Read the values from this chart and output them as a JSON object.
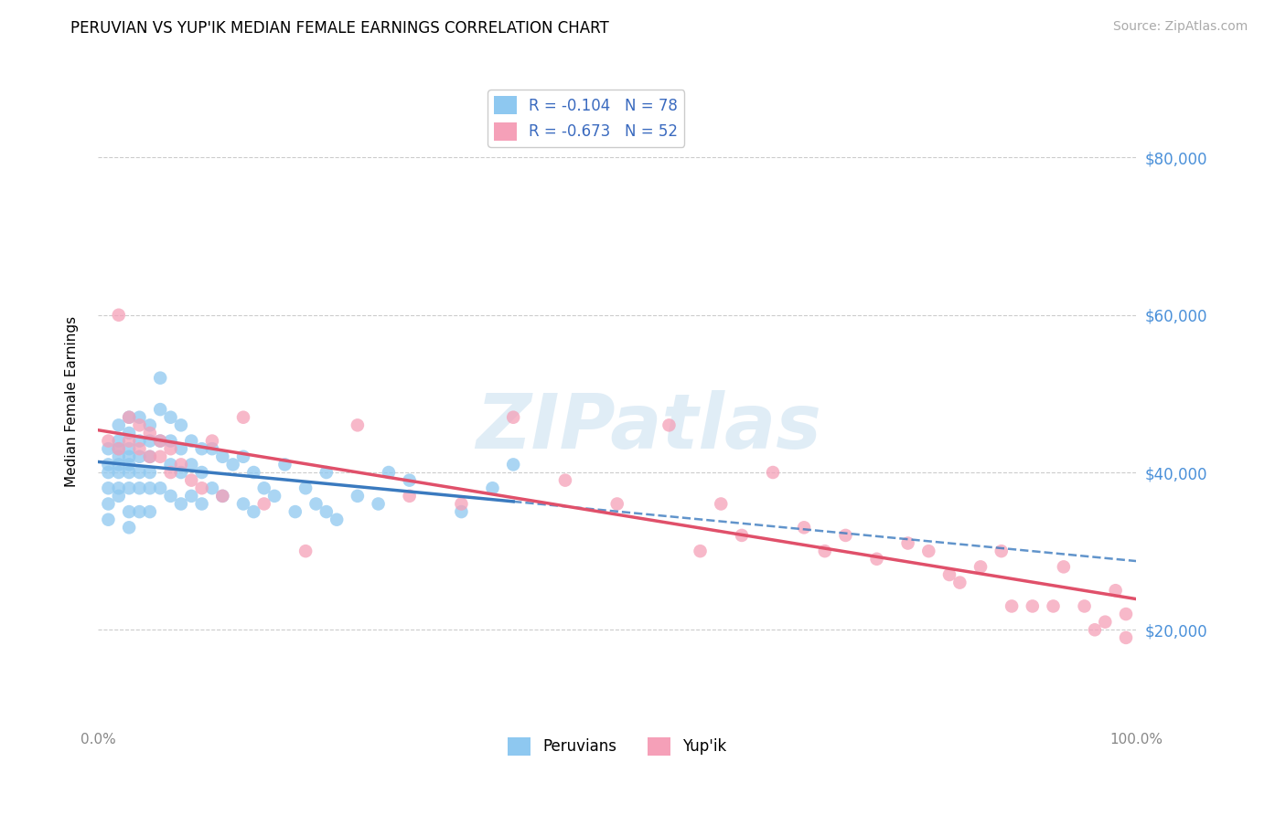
{
  "title": "PERUVIAN VS YUP'IK MEDIAN FEMALE EARNINGS CORRELATION CHART",
  "source": "Source: ZipAtlas.com",
  "ylabel": "Median Female Earnings",
  "xlim": [
    0.0,
    1.0
  ],
  "ylim": [
    8000,
    90000
  ],
  "yticks": [
    20000,
    40000,
    60000,
    80000
  ],
  "ytick_labels": [
    "$20,000",
    "$40,000",
    "$60,000",
    "$80,000"
  ],
  "peruvian_color": "#8ec8f0",
  "yupik_color": "#f5a0b8",
  "watermark": "ZIPatlas",
  "background_color": "#ffffff",
  "peruvian_x": [
    0.01,
    0.01,
    0.01,
    0.01,
    0.01,
    0.01,
    0.02,
    0.02,
    0.02,
    0.02,
    0.02,
    0.02,
    0.02,
    0.02,
    0.03,
    0.03,
    0.03,
    0.03,
    0.03,
    0.03,
    0.03,
    0.03,
    0.03,
    0.04,
    0.04,
    0.04,
    0.04,
    0.04,
    0.04,
    0.05,
    0.05,
    0.05,
    0.05,
    0.05,
    0.05,
    0.06,
    0.06,
    0.06,
    0.06,
    0.07,
    0.07,
    0.07,
    0.07,
    0.08,
    0.08,
    0.08,
    0.08,
    0.09,
    0.09,
    0.09,
    0.1,
    0.1,
    0.1,
    0.11,
    0.11,
    0.12,
    0.12,
    0.13,
    0.14,
    0.14,
    0.15,
    0.15,
    0.16,
    0.17,
    0.18,
    0.19,
    0.2,
    0.21,
    0.22,
    0.22,
    0.23,
    0.25,
    0.27,
    0.28,
    0.3,
    0.35,
    0.38,
    0.4
  ],
  "peruvian_y": [
    43000,
    41000,
    40000,
    38000,
    36000,
    34000,
    46000,
    44000,
    43000,
    42000,
    41000,
    40000,
    38000,
    37000,
    47000,
    45000,
    43000,
    42000,
    41000,
    40000,
    38000,
    35000,
    33000,
    47000,
    44000,
    42000,
    40000,
    38000,
    35000,
    46000,
    44000,
    42000,
    40000,
    38000,
    35000,
    52000,
    48000,
    44000,
    38000,
    47000,
    44000,
    41000,
    37000,
    46000,
    43000,
    40000,
    36000,
    44000,
    41000,
    37000,
    43000,
    40000,
    36000,
    43000,
    38000,
    42000,
    37000,
    41000,
    42000,
    36000,
    40000,
    35000,
    38000,
    37000,
    41000,
    35000,
    38000,
    36000,
    40000,
    35000,
    34000,
    37000,
    36000,
    40000,
    39000,
    35000,
    38000,
    41000
  ],
  "yupik_x": [
    0.01,
    0.02,
    0.02,
    0.03,
    0.03,
    0.04,
    0.04,
    0.05,
    0.05,
    0.06,
    0.06,
    0.07,
    0.07,
    0.08,
    0.09,
    0.1,
    0.11,
    0.12,
    0.14,
    0.16,
    0.2,
    0.25,
    0.3,
    0.35,
    0.4,
    0.45,
    0.5,
    0.55,
    0.58,
    0.6,
    0.62,
    0.65,
    0.68,
    0.7,
    0.72,
    0.75,
    0.78,
    0.8,
    0.82,
    0.83,
    0.85,
    0.87,
    0.88,
    0.9,
    0.92,
    0.93,
    0.95,
    0.96,
    0.97,
    0.98,
    0.99,
    0.99
  ],
  "yupik_y": [
    44000,
    60000,
    43000,
    47000,
    44000,
    46000,
    43000,
    45000,
    42000,
    44000,
    42000,
    43000,
    40000,
    41000,
    39000,
    38000,
    44000,
    37000,
    47000,
    36000,
    30000,
    46000,
    37000,
    36000,
    47000,
    39000,
    36000,
    46000,
    30000,
    36000,
    32000,
    40000,
    33000,
    30000,
    32000,
    29000,
    31000,
    30000,
    27000,
    26000,
    28000,
    30000,
    23000,
    23000,
    23000,
    28000,
    23000,
    20000,
    21000,
    25000,
    22000,
    19000
  ]
}
